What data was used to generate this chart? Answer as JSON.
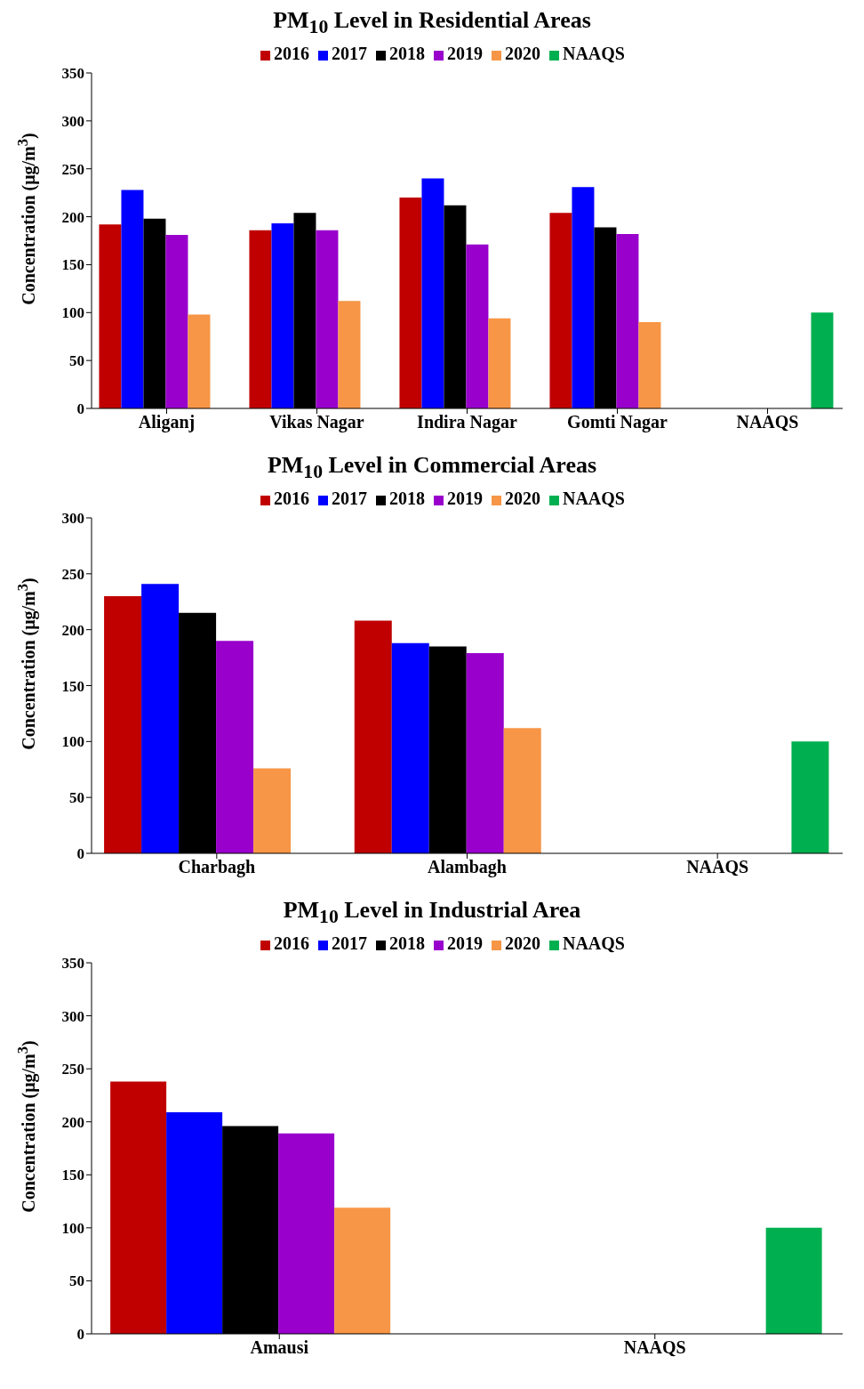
{
  "chart_data": [
    {
      "type": "bar",
      "title": "PM$_{10}$ Level in Residential Areas",
      "ylabel": "Concentration (μg/m$^{3}$)",
      "categories": [
        "Aliganj",
        "Vikas Nagar",
        "Indira Nagar",
        "Gomti Nagar",
        "NAAQS"
      ],
      "ylim": [
        0,
        350
      ],
      "yticks": [
        0,
        50,
        100,
        150,
        200,
        250,
        300,
        350
      ],
      "grid": false,
      "legend": "top",
      "series": [
        {
          "name": "2016",
          "color": "#c00000",
          "values": [
            192,
            186,
            220,
            204,
            null
          ]
        },
        {
          "name": "2017",
          "color": "#0000ff",
          "values": [
            228,
            193,
            240,
            231,
            null
          ]
        },
        {
          "name": "2018",
          "color": "#000000",
          "values": [
            198,
            204,
            212,
            189,
            null
          ]
        },
        {
          "name": "2019",
          "color": "#9900cc",
          "values": [
            181,
            186,
            171,
            182,
            null
          ]
        },
        {
          "name": "2020",
          "color": "#f79646",
          "values": [
            98,
            112,
            94,
            90,
            null
          ]
        },
        {
          "name": "NAAQS",
          "color": "#00b050",
          "values": [
            null,
            null,
            null,
            null,
            100
          ]
        }
      ]
    },
    {
      "type": "bar",
      "title": "PM$_{10}$ Level in Commercial Areas",
      "ylabel": "Concentration (μg/m$^{3}$)",
      "categories": [
        "Charbagh",
        "Alambagh",
        "NAAQS"
      ],
      "ylim": [
        0,
        300
      ],
      "yticks": [
        0,
        50,
        100,
        150,
        200,
        250,
        300
      ],
      "grid": false,
      "legend": "top",
      "series": [
        {
          "name": "2016",
          "color": "#c00000",
          "values": [
            230,
            208,
            null
          ]
        },
        {
          "name": "2017",
          "color": "#0000ff",
          "values": [
            241,
            188,
            null
          ]
        },
        {
          "name": "2018",
          "color": "#000000",
          "values": [
            215,
            185,
            null
          ]
        },
        {
          "name": "2019",
          "color": "#9900cc",
          "values": [
            190,
            179,
            null
          ]
        },
        {
          "name": "2020",
          "color": "#f79646",
          "values": [
            76,
            112,
            null
          ]
        },
        {
          "name": "NAAQS",
          "color": "#00b050",
          "values": [
            null,
            null,
            100
          ]
        }
      ]
    },
    {
      "type": "bar",
      "title": "PM$_{10}$ Level in Industrial Area",
      "ylabel": "Concentration (μg/m$^{3}$)",
      "categories": [
        "Amausi",
        "NAAQS"
      ],
      "ylim": [
        0,
        350
      ],
      "yticks": [
        0,
        50,
        100,
        150,
        200,
        250,
        300,
        350
      ],
      "grid": false,
      "legend": "top",
      "series": [
        {
          "name": "2016",
          "color": "#c00000",
          "values": [
            238,
            null
          ]
        },
        {
          "name": "2017",
          "color": "#0000ff",
          "values": [
            209,
            null
          ]
        },
        {
          "name": "2018",
          "color": "#000000",
          "values": [
            196,
            null
          ]
        },
        {
          "name": "2019",
          "color": "#9900cc",
          "values": [
            189,
            null
          ]
        },
        {
          "name": "2020",
          "color": "#f79646",
          "values": [
            119,
            null
          ]
        },
        {
          "name": "NAAQS",
          "color": "#00b050",
          "values": [
            null,
            100
          ]
        }
      ]
    }
  ]
}
